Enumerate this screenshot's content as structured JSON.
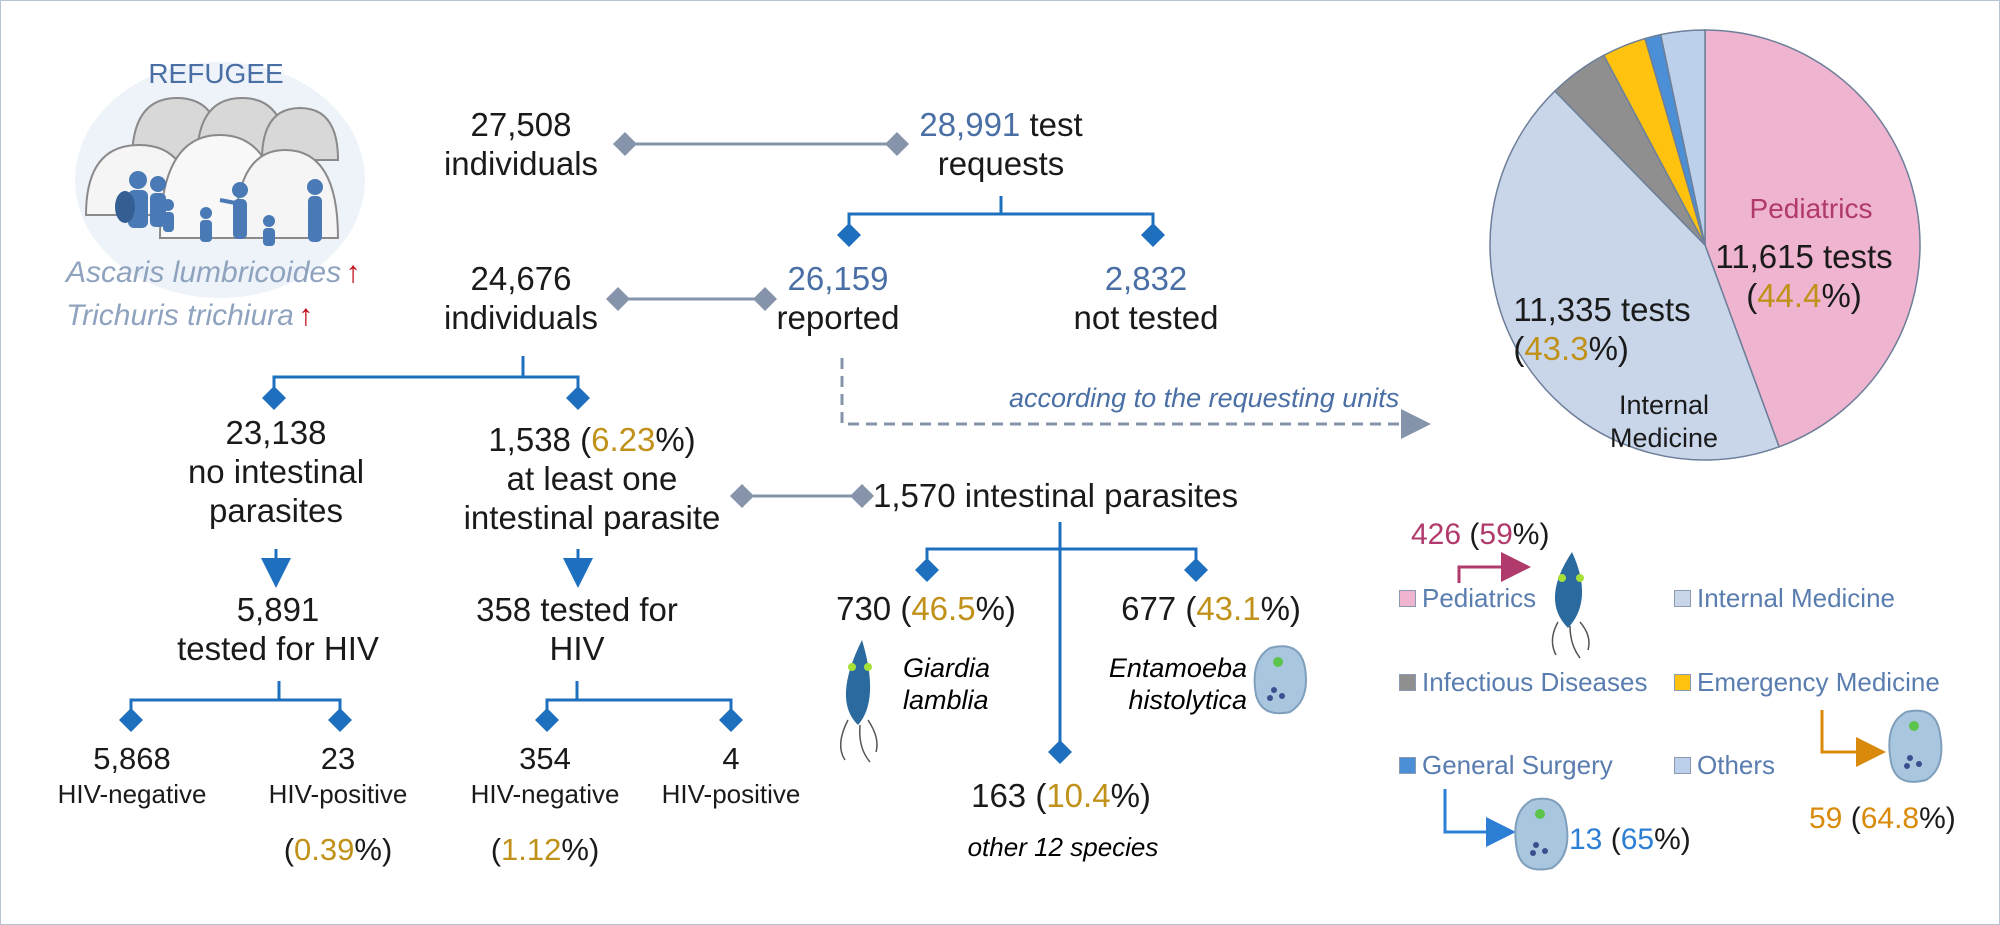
{
  "refugee": {
    "title": "REFUGEE",
    "species1": "Ascaris lumbricoides",
    "species2": "Trichuris trichiura",
    "up_arrow": "↑"
  },
  "row1": {
    "individuals_num": "27,508",
    "individuals_label": "individuals",
    "requests_num": "28,991",
    "requests_word": "test",
    "requests_label": "requests"
  },
  "row2": {
    "individuals_num": "24,676",
    "individuals_label": "individuals",
    "reported_num": "26,159",
    "reported_label": "reported",
    "not_tested_num": "2,832",
    "not_tested_label": "not tested",
    "requesting_units": "according to the requesting units"
  },
  "row3": {
    "no_parasite_num": "23,138",
    "no_parasite_l1": "no intestinal",
    "no_parasite_l2": "parasites",
    "parasite_num": "1,538",
    "parasite_pct": "6.23",
    "parasite_l1": "at least one",
    "parasite_l2": "intestinal parasite",
    "intestinal_parasites": "1,570 intestinal parasites"
  },
  "hiv_left": {
    "num": "5,891",
    "label": "tested for HIV",
    "neg_num": "5,868",
    "neg_label": "HIV-negative",
    "pos_num": "23",
    "pos_label": "HIV-positive",
    "pos_pct": "0.39"
  },
  "hiv_right": {
    "l1": "358 tested for",
    "l2": "HIV",
    "neg_num": "354",
    "neg_label": "HIV-negative",
    "neg_pct": "1.12",
    "pos_num": "4",
    "pos_label": "HIV-positive"
  },
  "species": {
    "giardia_num": "730",
    "giardia_pct": "46.5",
    "giardia_l1": "Giardia",
    "giardia_l2": "lamblia",
    "entamoeba_num": "677",
    "entamoeba_pct": "43.1",
    "entamoeba_l1": "Entamoeba",
    "entamoeba_l2": "histolytica",
    "other_num": "163",
    "other_pct": "10.4",
    "other_label": "other 12 species"
  },
  "pie": {
    "pediatrics_label": "Pediatrics",
    "pediatrics_tests": "11,615 tests",
    "pediatrics_pct": "44.4",
    "internal_tests": "11,335 tests",
    "internal_pct": "43.3",
    "internal_l1": "Internal",
    "internal_l2": "Medicine"
  },
  "chart_data": {
    "type": "pie",
    "categories": [
      "Pediatrics",
      "Internal Medicine",
      "Infectious Diseases",
      "Emergency Medicine",
      "General Surgery",
      "Others"
    ],
    "values": [
      44.4,
      43.3,
      4.5,
      3.3,
      1.2,
      3.3
    ],
    "colors": [
      "#efb4cf",
      "#c9d6ea",
      "#8f8f8f",
      "#ffc20e",
      "#4b8fd6",
      "#bcd0ec"
    ]
  },
  "legend": {
    "pediatrics": "Pediatrics",
    "internal": "Internal Medicine",
    "infectious": "Infectious Diseases",
    "emergency": "Emergency Medicine",
    "surgery": "General Surgery",
    "others": "Others"
  },
  "callouts": {
    "ped_num": "426",
    "ped_pct": "59",
    "surgery_num": "13",
    "surgery_pct": "65",
    "emergency_num": "59",
    "emergency_pct": "64.8"
  },
  "colors": {
    "flow_blue": "#1f6fbf",
    "gray_connector": "#8594ab",
    "gold": "#c1921a"
  }
}
